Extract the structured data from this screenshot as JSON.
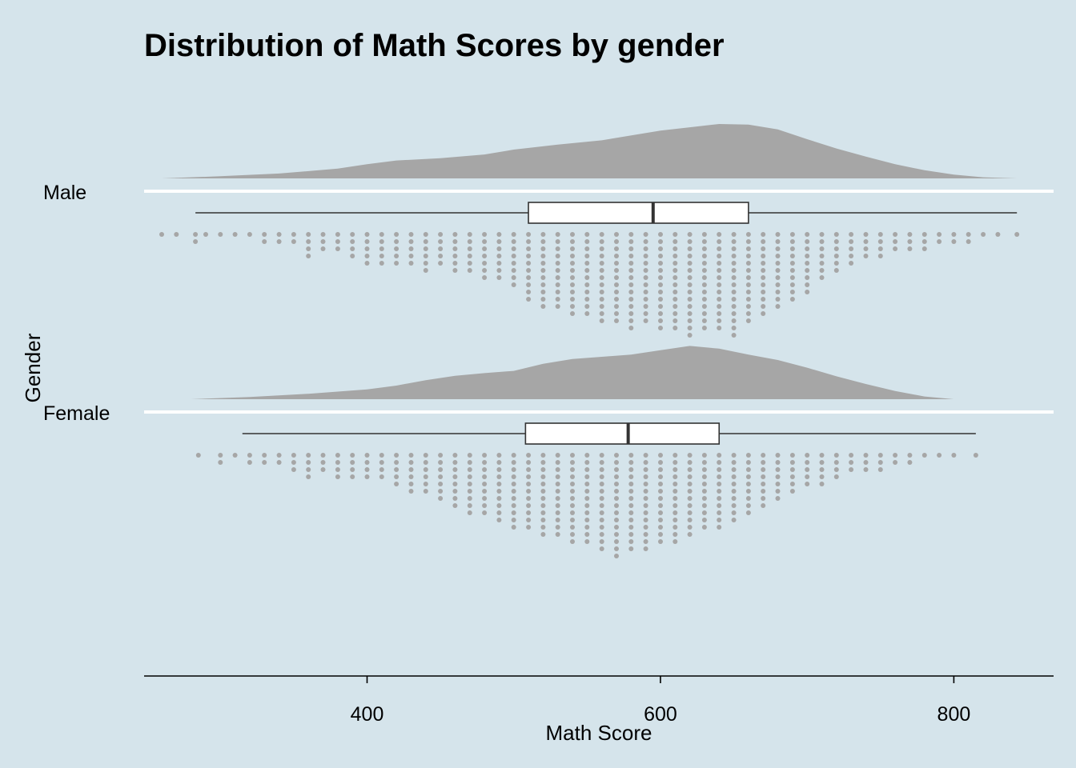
{
  "colors": {
    "background": "#d5e4eb",
    "fill": "#a6a6a6",
    "box_fill": "#ffffff",
    "line": "#333333",
    "baseline": "#ffffff"
  },
  "chart_data": {
    "type": "raincloud",
    "title": "Distribution of Math Scores by gender",
    "xlabel": "Math Score",
    "ylabel": "Gender",
    "xlim": [
      248,
      868
    ],
    "x_ticks": [
      400,
      600,
      800
    ],
    "x_tick_labels": [
      "400",
      "600",
      "800"
    ],
    "categories": [
      "Male",
      "Female"
    ],
    "series": [
      {
        "name": "Male",
        "min": 283,
        "q1": 510,
        "median": 595,
        "q3": 660,
        "max": 843,
        "range": [
          260,
          843
        ],
        "density": [
          [
            260,
            0.0
          ],
          [
            300,
            0.04
          ],
          [
            340,
            0.09
          ],
          [
            380,
            0.18
          ],
          [
            400,
            0.26
          ],
          [
            420,
            0.33
          ],
          [
            450,
            0.37
          ],
          [
            480,
            0.44
          ],
          [
            500,
            0.53
          ],
          [
            530,
            0.62
          ],
          [
            560,
            0.7
          ],
          [
            600,
            0.88
          ],
          [
            620,
            0.94
          ],
          [
            640,
            1.0
          ],
          [
            660,
            0.99
          ],
          [
            680,
            0.9
          ],
          [
            700,
            0.72
          ],
          [
            720,
            0.55
          ],
          [
            740,
            0.4
          ],
          [
            760,
            0.26
          ],
          [
            780,
            0.15
          ],
          [
            800,
            0.07
          ],
          [
            820,
            0.02
          ],
          [
            843,
            0.0
          ]
        ],
        "dots": [
          [
            260,
            1
          ],
          [
            270,
            1
          ],
          [
            283,
            2
          ],
          [
            290,
            1
          ],
          [
            300,
            1
          ],
          [
            310,
            1
          ],
          [
            320,
            1
          ],
          [
            330,
            2
          ],
          [
            340,
            2
          ],
          [
            350,
            2
          ],
          [
            360,
            4
          ],
          [
            370,
            3
          ],
          [
            380,
            3
          ],
          [
            390,
            4
          ],
          [
            400,
            5
          ],
          [
            410,
            5
          ],
          [
            420,
            5
          ],
          [
            430,
            5
          ],
          [
            440,
            6
          ],
          [
            450,
            5
          ],
          [
            460,
            6
          ],
          [
            470,
            6
          ],
          [
            480,
            7
          ],
          [
            490,
            7
          ],
          [
            500,
            8
          ],
          [
            510,
            10
          ],
          [
            520,
            11
          ],
          [
            530,
            11
          ],
          [
            540,
            12
          ],
          [
            550,
            12
          ],
          [
            560,
            13
          ],
          [
            570,
            13
          ],
          [
            580,
            14
          ],
          [
            590,
            13
          ],
          [
            600,
            14
          ],
          [
            610,
            14
          ],
          [
            620,
            15
          ],
          [
            630,
            14
          ],
          [
            640,
            14
          ],
          [
            650,
            15
          ],
          [
            660,
            13
          ],
          [
            670,
            12
          ],
          [
            680,
            11
          ],
          [
            690,
            10
          ],
          [
            700,
            9
          ],
          [
            710,
            7
          ],
          [
            720,
            6
          ],
          [
            730,
            5
          ],
          [
            740,
            4
          ],
          [
            750,
            4
          ],
          [
            760,
            3
          ],
          [
            770,
            3
          ],
          [
            780,
            3
          ],
          [
            790,
            2
          ],
          [
            800,
            2
          ],
          [
            810,
            2
          ],
          [
            820,
            1
          ],
          [
            830,
            1
          ],
          [
            843,
            1
          ]
        ]
      },
      {
        "name": "Female",
        "min": 315,
        "q1": 508,
        "median": 578,
        "q3": 640,
        "max": 815,
        "range": [
          280,
          815
        ],
        "density": [
          [
            280,
            0.0
          ],
          [
            320,
            0.04
          ],
          [
            360,
            0.1
          ],
          [
            400,
            0.18
          ],
          [
            420,
            0.25
          ],
          [
            440,
            0.35
          ],
          [
            460,
            0.43
          ],
          [
            480,
            0.48
          ],
          [
            500,
            0.52
          ],
          [
            520,
            0.65
          ],
          [
            540,
            0.74
          ],
          [
            560,
            0.78
          ],
          [
            580,
            0.82
          ],
          [
            600,
            0.9
          ],
          [
            620,
            0.98
          ],
          [
            640,
            0.93
          ],
          [
            660,
            0.82
          ],
          [
            680,
            0.72
          ],
          [
            700,
            0.58
          ],
          [
            720,
            0.42
          ],
          [
            740,
            0.28
          ],
          [
            760,
            0.15
          ],
          [
            780,
            0.05
          ],
          [
            800,
            0.0
          ],
          [
            815,
            0.0
          ]
        ],
        "dots": [
          [
            285,
            1
          ],
          [
            300,
            2
          ],
          [
            310,
            1
          ],
          [
            320,
            2
          ],
          [
            330,
            2
          ],
          [
            340,
            2
          ],
          [
            350,
            3
          ],
          [
            360,
            4
          ],
          [
            370,
            3
          ],
          [
            380,
            4
          ],
          [
            390,
            4
          ],
          [
            400,
            4
          ],
          [
            410,
            4
          ],
          [
            420,
            5
          ],
          [
            430,
            6
          ],
          [
            440,
            6
          ],
          [
            450,
            7
          ],
          [
            460,
            8
          ],
          [
            470,
            9
          ],
          [
            480,
            9
          ],
          [
            490,
            10
          ],
          [
            500,
            11
          ],
          [
            510,
            11
          ],
          [
            520,
            12
          ],
          [
            530,
            12
          ],
          [
            540,
            13
          ],
          [
            550,
            13
          ],
          [
            560,
            14
          ],
          [
            570,
            15
          ],
          [
            580,
            14
          ],
          [
            590,
            14
          ],
          [
            600,
            13
          ],
          [
            610,
            13
          ],
          [
            620,
            12
          ],
          [
            630,
            11
          ],
          [
            640,
            11
          ],
          [
            650,
            10
          ],
          [
            660,
            9
          ],
          [
            670,
            8
          ],
          [
            680,
            7
          ],
          [
            690,
            6
          ],
          [
            700,
            5
          ],
          [
            710,
            5
          ],
          [
            720,
            4
          ],
          [
            730,
            3
          ],
          [
            740,
            3
          ],
          [
            750,
            3
          ],
          [
            760,
            2
          ],
          [
            770,
            2
          ],
          [
            780,
            1
          ],
          [
            790,
            1
          ],
          [
            800,
            1
          ],
          [
            815,
            1
          ]
        ]
      }
    ],
    "grid": false,
    "legend": "none"
  }
}
